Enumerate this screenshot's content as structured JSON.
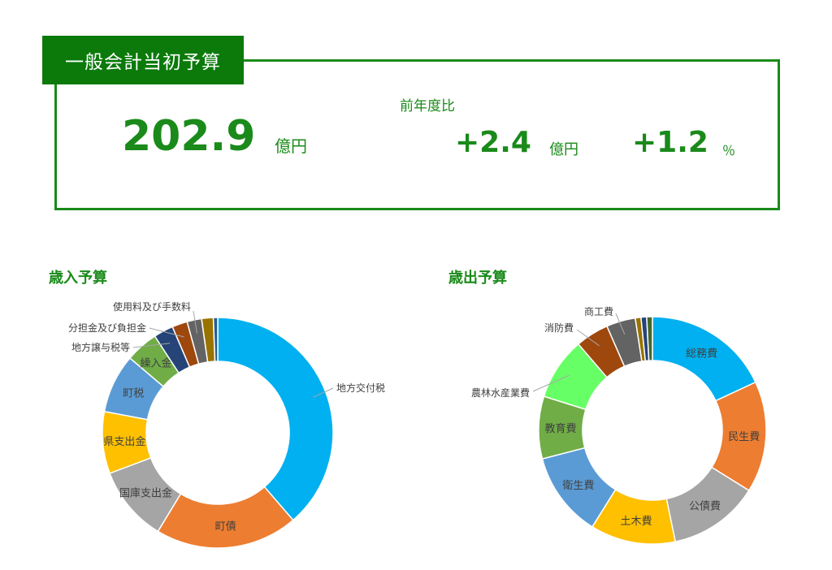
{
  "header": {
    "title": "一般会計当初予算"
  },
  "summary": {
    "total_value": "202.9",
    "total_unit": "億円",
    "yoy_label": "前年度比",
    "diff_value": "+2.4",
    "diff_unit": "億円",
    "pct_value": "+1.2",
    "pct_unit": "％"
  },
  "colors": {
    "accent": "#1a8a1a",
    "tab_bg": "#0b7a0b"
  },
  "chart_data": [
    {
      "type": "pie",
      "title": "歳入予算",
      "slices": [
        {
          "label": "地方交付税",
          "value": 37.9,
          "color": "#00b0f0",
          "label_mode": "outside"
        },
        {
          "label": "町債",
          "value": 19.6,
          "color": "#ed7d31",
          "label_mode": "inside"
        },
        {
          "label": "国庫支出金",
          "value": 10.4,
          "color": "#a5a5a5",
          "label_mode": "inside"
        },
        {
          "label": "県支出金",
          "value": 8.5,
          "color": "#ffc000",
          "label_mode": "inside"
        },
        {
          "label": "町税",
          "value": 8.1,
          "color": "#5b9bd5",
          "label_mode": "inside"
        },
        {
          "label": "繰入金",
          "value": 4.5,
          "color": "#70ad47",
          "label_mode": "inside"
        },
        {
          "label": "地方譲与税等",
          "value": 2.7,
          "color": "#264478",
          "label_mode": "outside"
        },
        {
          "label": "分担金及び負担金",
          "value": 2.1,
          "color": "#9e480e",
          "label_mode": "outside"
        },
        {
          "label": "使用料及び手数料",
          "value": 2.0,
          "color": "#636363",
          "label_mode": "outside"
        },
        {
          "label": "",
          "value": 1.6,
          "color": "#997300",
          "label_mode": "none"
        },
        {
          "label": "",
          "value": 0.6,
          "color": "#255e91",
          "label_mode": "none"
        }
      ]
    },
    {
      "type": "pie",
      "title": "歳出予算",
      "slices": [
        {
          "label": "総務費",
          "value": 17.9,
          "color": "#00b0f0",
          "label_mode": "inside"
        },
        {
          "label": "民生費",
          "value": 15.7,
          "color": "#ed7d31",
          "label_mode": "inside"
        },
        {
          "label": "公債費",
          "value": 12.8,
          "color": "#a5a5a5",
          "label_mode": "inside"
        },
        {
          "label": "土木費",
          "value": 12.0,
          "color": "#ffc000",
          "label_mode": "inside"
        },
        {
          "label": "衛生費",
          "value": 12.0,
          "color": "#5b9bd5",
          "label_mode": "inside"
        },
        {
          "label": "教育費",
          "value": 8.8,
          "color": "#70ad47",
          "label_mode": "inside"
        },
        {
          "label": "農林水産業費",
          "value": 8.8,
          "color": "#66ff66",
          "label_mode": "outside"
        },
        {
          "label": "消防費",
          "value": 4.7,
          "color": "#9e480e",
          "label_mode": "outside"
        },
        {
          "label": "商工費",
          "value": 4.1,
          "color": "#636363",
          "label_mode": "outside"
        },
        {
          "label": "",
          "value": 0.8,
          "color": "#997300",
          "label_mode": "none"
        },
        {
          "label": "",
          "value": 0.8,
          "color": "#264478",
          "label_mode": "none"
        },
        {
          "label": "",
          "value": 0.8,
          "color": "#43682b",
          "label_mode": "none"
        }
      ]
    }
  ]
}
